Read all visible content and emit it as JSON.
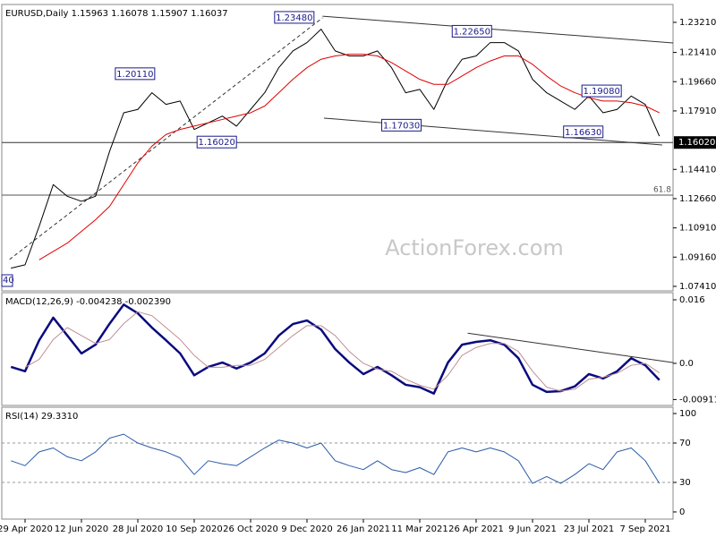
{
  "chart_data": [
    {
      "type": "line",
      "title": "EURUSD,Daily  1.15963 1.16078 1.15907 1.16037",
      "watermark": "ActionForex.com",
      "ylim": [
        1.0714,
        1.2428
      ],
      "yticks": [
        {
          "value": 1.2321,
          "label": "1.23210"
        },
        {
          "value": 1.2141,
          "label": "1.21410"
        },
        {
          "value": 1.1966,
          "label": "1.19660"
        },
        {
          "value": 1.1791,
          "label": "1.17910"
        },
        {
          "value": 1.1441,
          "label": "1.14410"
        },
        {
          "value": 1.1266,
          "label": "1.12660"
        },
        {
          "value": 1.1091,
          "label": "1.10910"
        },
        {
          "value": 1.0916,
          "label": "1.09160"
        },
        {
          "value": 1.0741,
          "label": "1.07410"
        }
      ],
      "series": [
        {
          "color": "#000000",
          "values": [
            1.085,
            1.087,
            1.11,
            1.135,
            1.128,
            1.125,
            1.128,
            1.155,
            1.178,
            1.18,
            1.19,
            1.183,
            1.185,
            1.168,
            1.172,
            1.176,
            1.17,
            1.18,
            1.19,
            1.205,
            1.215,
            1.22,
            1.228,
            1.215,
            1.212,
            1.212,
            1.215,
            1.205,
            1.19,
            1.192,
            1.18,
            1.198,
            1.21,
            1.212,
            1.22,
            1.22,
            1.215,
            1.198,
            1.19,
            1.185,
            1.18,
            1.188,
            1.178,
            1.18,
            1.188,
            1.183,
            1.164
          ]
        },
        {
          "color": "#e00000",
          "values": [
            null,
            null,
            1.09,
            1.095,
            1.1,
            1.107,
            1.114,
            1.122,
            1.135,
            1.148,
            1.158,
            1.165,
            1.168,
            1.17,
            1.172,
            1.174,
            1.176,
            1.178,
            1.182,
            1.19,
            1.198,
            1.205,
            1.21,
            1.212,
            1.213,
            1.213,
            1.212,
            1.208,
            1.203,
            1.198,
            1.195,
            1.195,
            1.2,
            1.205,
            1.209,
            1.212,
            1.212,
            1.207,
            1.2,
            1.194,
            1.19,
            1.187,
            1.185,
            1.185,
            1.184,
            1.182,
            1.178
          ]
        }
      ],
      "annotations": [
        {
          "label": "1.23480",
          "value": 1.2348,
          "at": 20.1
        },
        {
          "label": "1.20110",
          "value": 1.2011,
          "at": 8.8
        },
        {
          "label": "1.16020",
          "value": 1.1602,
          "at": 14.6
        },
        {
          "label": "1.17030",
          "value": 1.1703,
          "at": 27.7
        },
        {
          "label": "1.22650",
          "value": 1.2265,
          "at": 32.7
        },
        {
          "label": "1.19080",
          "value": 1.1908,
          "at": 41.9
        },
        {
          "label": "1.16630",
          "value": 1.1663,
          "at": 40.6
        }
      ],
      "edge_label": "40",
      "current": {
        "value": 1.1602,
        "label": "1.16020"
      },
      "fib": {
        "value": 1.1287,
        "name": "61.8"
      },
      "trendlines": [
        {
          "from": [
            22.1,
            1.2358
          ],
          "to": [
            47.0,
            1.2198
          ],
          "style": "solid"
        },
        {
          "from": [
            22.2,
            1.1748
          ],
          "to": [
            46.2,
            1.1587
          ],
          "style": "solid"
        },
        {
          "from": [
            -0.1,
            1.0902
          ],
          "to": [
            22.1,
            1.2348
          ],
          "style": "dashed"
        }
      ]
    },
    {
      "type": "line",
      "title": "MACD(12,26,9) -0.004238 -0.002390",
      "ylim": [
        -0.0106,
        0.0178
      ],
      "yticks": [
        0.016,
        {
          "value": 0,
          "label": "0.0"
        },
        -0.009116
      ],
      "series": [
        {
          "color": "#0a0a80",
          "width": 2.5,
          "values": [
            -0.0009,
            -0.002,
            0.0058,
            0.0115,
            0.007,
            0.0025,
            0.0047,
            0.01,
            0.0148,
            0.0126,
            0.009,
            0.0058,
            0.0025,
            -0.003,
            -0.0009,
            0.0002,
            -0.0013,
            0.0002,
            0.0025,
            0.007,
            0.0099,
            0.0108,
            0.0085,
            0.0036,
            0.0002,
            -0.0027,
            -0.0009,
            -0.003,
            -0.0054,
            -0.006,
            -0.0076,
            0.0002,
            0.0047,
            0.0054,
            0.0058,
            0.0047,
            0.0013,
            -0.0054,
            -0.0072,
            -0.007,
            -0.0058,
            -0.0027,
            -0.0038,
            -0.002,
            0.0013,
            -0.0005,
            -0.0042
          ]
        },
        {
          "color": "#c09090",
          "width": 1,
          "values": [
            null,
            -0.001,
            0.001,
            0.006,
            0.009,
            0.007,
            0.005,
            0.006,
            0.01,
            0.013,
            0.012,
            0.009,
            0.006,
            0.002,
            -0.001,
            -0.001,
            -0.0005,
            -0.0005,
            0.001,
            0.004,
            0.007,
            0.0095,
            0.0095,
            0.007,
            0.003,
            0.0,
            -0.0015,
            -0.002,
            -0.004,
            -0.0055,
            -0.0065,
            -0.003,
            0.002,
            0.004,
            0.005,
            0.005,
            0.003,
            -0.002,
            -0.006,
            -0.007,
            -0.0065,
            -0.004,
            -0.0035,
            -0.0025,
            -0.0005,
            0.0,
            -0.0024
          ]
        }
      ],
      "trendlines": [
        {
          "from": [
            32.4,
            0.0076
          ],
          "to": [
            47.1,
            0.0002
          ],
          "style": "solid"
        }
      ]
    },
    {
      "type": "line",
      "title": "RSI(14) 29.3310",
      "ylim": [
        -7.3,
        106.4
      ],
      "yticks": [
        100,
        70,
        30,
        0
      ],
      "levels": [
        70,
        30
      ],
      "categories": [
        null,
        "29 Apr 2020",
        null,
        null,
        null,
        "12 Jun 2020",
        null,
        null,
        null,
        "28 Jul 2020",
        null,
        null,
        null,
        "10 Sep 2020",
        null,
        null,
        null,
        "26 Oct 2020",
        null,
        null,
        null,
        "9 Dec 2020",
        null,
        null,
        null,
        "26 Jan 2021",
        null,
        null,
        null,
        "11 Mar 2021",
        null,
        null,
        null,
        "26 Apr 2021",
        null,
        null,
        null,
        "9 Jun 2021",
        null,
        null,
        null,
        "23 Jul 2021",
        null,
        null,
        null,
        "7 Sep 2021",
        null
      ],
      "series": [
        {
          "color": "#2a5ba8",
          "width": 1,
          "values": [
            52,
            47,
            61,
            65,
            56,
            52,
            61,
            75,
            79,
            70,
            65,
            61,
            55,
            38,
            52,
            49,
            47,
            56,
            65,
            73,
            70,
            65,
            70,
            52,
            47,
            43,
            52,
            43,
            40,
            45,
            38,
            61,
            65,
            61,
            65,
            61,
            52,
            29,
            36,
            29,
            38,
            49,
            43,
            61,
            65,
            52,
            29
          ]
        }
      ]
    }
  ]
}
